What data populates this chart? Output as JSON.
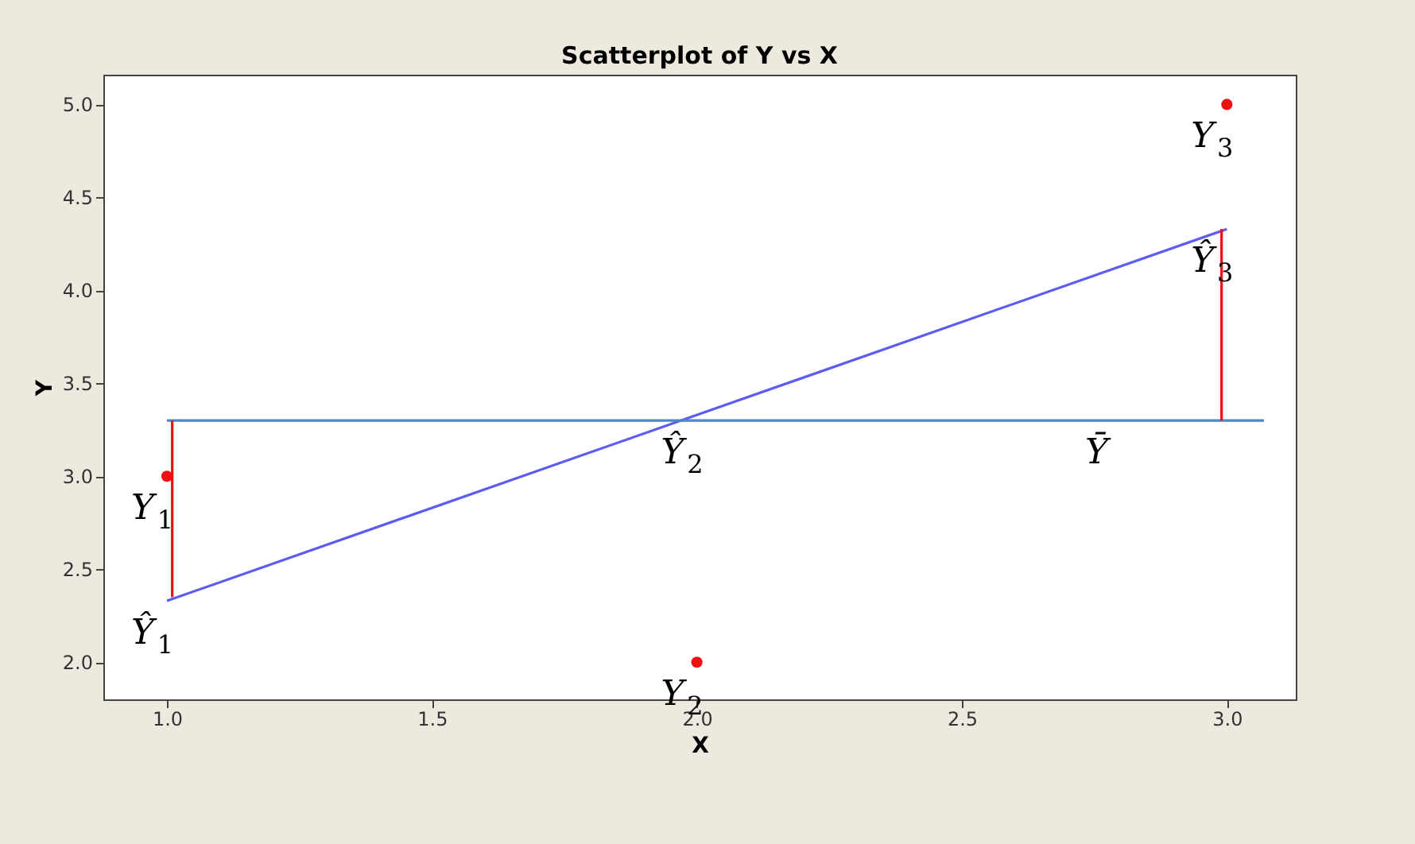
{
  "chart_data": {
    "type": "scatter",
    "title": "Scatterplot of Y vs X",
    "xlabel": "X",
    "ylabel": "Y",
    "xlim": [
      0.88,
      3.13
    ],
    "ylim": [
      1.8,
      5.16
    ],
    "xticks": [
      {
        "value": 1,
        "label": "1.0"
      },
      {
        "value": 1.5,
        "label": "1.5"
      },
      {
        "value": 2,
        "label": "2.0"
      },
      {
        "value": 2.5,
        "label": "2.5"
      },
      {
        "value": 3,
        "label": "3.0"
      }
    ],
    "yticks": [
      {
        "value": 2,
        "label": "2.0"
      },
      {
        "value": 2.5,
        "label": "2.5"
      },
      {
        "value": 3,
        "label": "3.0"
      },
      {
        "value": 3.5,
        "label": "3.5"
      },
      {
        "value": 4,
        "label": "4.0"
      },
      {
        "value": 4.5,
        "label": "4.5"
      },
      {
        "value": 5,
        "label": "5.0"
      }
    ],
    "grid": false,
    "marker": "circle",
    "series": [
      {
        "type": "line",
        "marker": "none",
        "color": "#5c5cf5",
        "x": [
          1,
          3
        ],
        "values": [
          2.33,
          4.33
        ]
      },
      {
        "type": "line",
        "marker": "none",
        "color": "#4f86c6",
        "x": [
          1,
          3.07
        ],
        "values": [
          3.3,
          3.3
        ]
      },
      {
        "type": "line",
        "marker": "none",
        "color": "#ee1111",
        "x": [
          1.01,
          1.01
        ],
        "values": [
          2.35,
          3.3
        ]
      },
      {
        "type": "line",
        "marker": "none",
        "color": "#ee1111",
        "x": [
          2.99,
          2.99
        ],
        "values": [
          3.3,
          4.33
        ]
      },
      {
        "color": "#ee1111",
        "x": [
          1,
          2,
          3
        ],
        "values": [
          3,
          2,
          5
        ]
      }
    ],
    "annotations": [
      {
        "text": "Y$_{1}$",
        "x": 1,
        "y": 3
      },
      {
        "text": "Ŷ$_{1}$",
        "x": 1,
        "y": 2.33
      },
      {
        "text": "Y$_{2}$",
        "x": 2,
        "y": 2
      },
      {
        "text": "Ŷ$_{2}$",
        "x": 2,
        "y": 3.3
      },
      {
        "text": "Ȳ",
        "x": 2.8,
        "y": 3.3
      },
      {
        "text": "Y$_{3}$",
        "x": 3,
        "y": 5
      },
      {
        "text": "Ŷ$_{3}$",
        "x": 3,
        "y": 4.33
      }
    ]
  }
}
